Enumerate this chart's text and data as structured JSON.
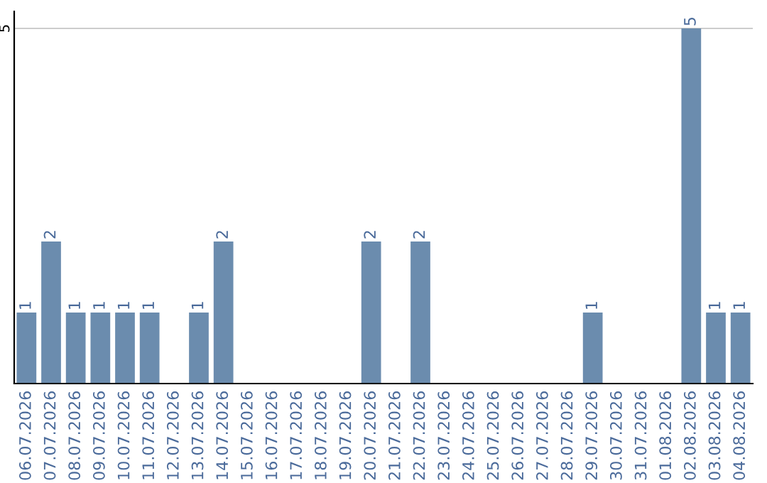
{
  "chart_data": {
    "type": "bar",
    "categories": [
      "06.07.2026",
      "07.07.2026",
      "08.07.2026",
      "09.07.2026",
      "10.07.2026",
      "11.07.2026",
      "12.07.2026",
      "13.07.2026",
      "14.07.2026",
      "15.07.2026",
      "16.07.2026",
      "17.07.2026",
      "18.07.2026",
      "19.07.2026",
      "20.07.2026",
      "21.07.2026",
      "22.07.2026",
      "23.07.2026",
      "24.07.2026",
      "25.07.2026",
      "26.07.2026",
      "27.07.2026",
      "28.07.2026",
      "29.07.2026",
      "30.07.2026",
      "31.07.2026",
      "01.08.2026",
      "02.08.2026",
      "03.08.2026",
      "04.08.2026"
    ],
    "values": [
      1,
      2,
      1,
      1,
      1,
      1,
      0,
      1,
      2,
      0,
      0,
      0,
      0,
      0,
      2,
      0,
      2,
      0,
      0,
      0,
      0,
      0,
      0,
      1,
      0,
      0,
      0,
      5,
      1,
      1
    ],
    "value_labels": [
      "1",
      "2",
      "1",
      "1",
      "1",
      "1",
      null,
      "1",
      "2",
      null,
      null,
      null,
      null,
      null,
      "2",
      null,
      "2",
      null,
      null,
      null,
      null,
      null,
      null,
      "1",
      null,
      null,
      null,
      "5",
      "1",
      "1"
    ],
    "color": "#6b8cae",
    "ylim": [
      0,
      5.24
    ],
    "yticks": [
      5
    ],
    "grid": "y"
  }
}
